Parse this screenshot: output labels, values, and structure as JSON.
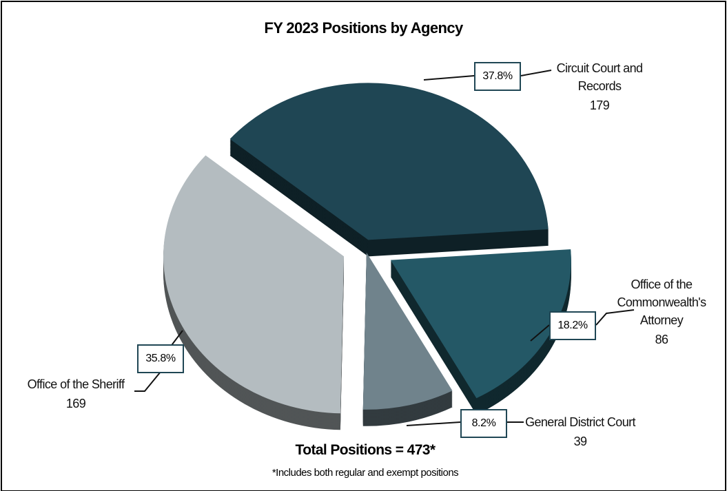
{
  "chart_data": {
    "type": "pie",
    "title": "FY 2023 Positions by Agency",
    "categories": [
      "Circuit Court and Records",
      "Office of the Commonwealth's Attorney",
      "General District Court",
      "Office of the Sheriff"
    ],
    "values": [
      37.8,
      18.2,
      8.2,
      35.8
    ],
    "value_labels": [
      "37.8%",
      "18.2%",
      "8.2%",
      "35.8%"
    ],
    "counts": [
      "179",
      "86",
      "39",
      "169"
    ],
    "colors": [
      "#1f4654",
      "#245866",
      "#70838c",
      "#b4bcc0"
    ],
    "total_label": "Total Positions = 473*",
    "footnote": "*Includes both regular and exempt positions"
  }
}
